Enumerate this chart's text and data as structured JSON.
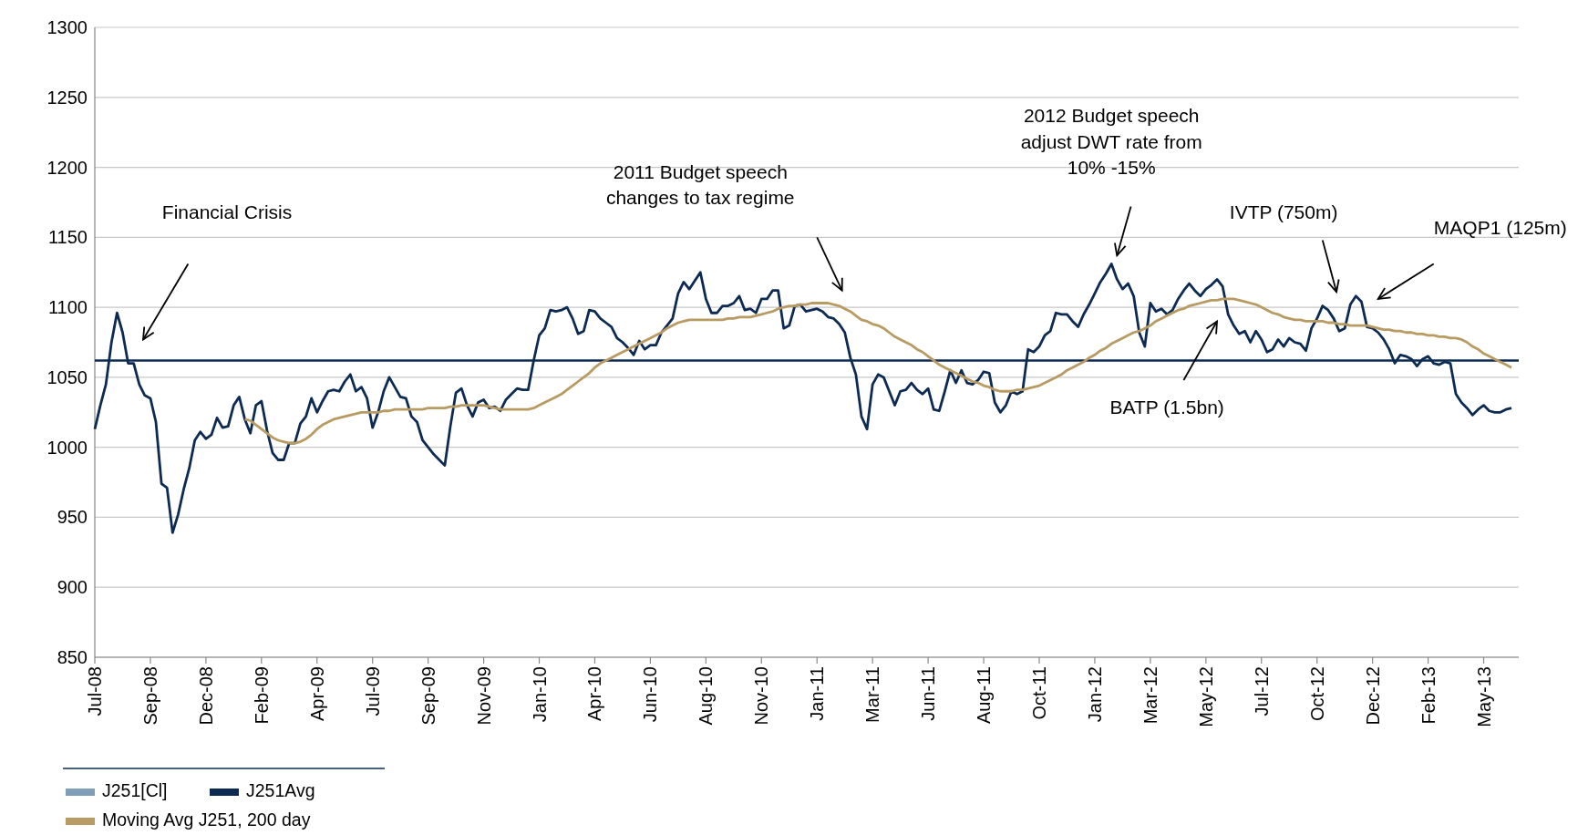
{
  "chart_data": {
    "type": "line",
    "categories": [
      "Jul-08",
      null,
      null,
      null,
      null,
      null,
      null,
      null,
      null,
      null,
      "Sep-08",
      null,
      null,
      null,
      null,
      null,
      null,
      null,
      null,
      null,
      "Dec-08",
      null,
      null,
      null,
      null,
      null,
      null,
      null,
      null,
      null,
      "Feb-09",
      null,
      null,
      null,
      null,
      null,
      null,
      null,
      null,
      null,
      "Apr-09",
      null,
      null,
      null,
      null,
      null,
      null,
      null,
      null,
      null,
      "Jul-09",
      null,
      null,
      null,
      null,
      null,
      null,
      null,
      null,
      null,
      "Sep-09",
      null,
      null,
      null,
      null,
      null,
      null,
      null,
      null,
      null,
      "Nov-09",
      null,
      null,
      null,
      null,
      null,
      null,
      null,
      null,
      null,
      "Jan-10",
      null,
      null,
      null,
      null,
      null,
      null,
      null,
      null,
      null,
      "Apr-10",
      null,
      null,
      null,
      null,
      null,
      null,
      null,
      null,
      null,
      "Jun-10",
      null,
      null,
      null,
      null,
      null,
      null,
      null,
      null,
      null,
      "Aug-10",
      null,
      null,
      null,
      null,
      null,
      null,
      null,
      null,
      null,
      "Nov-10",
      null,
      null,
      null,
      null,
      null,
      null,
      null,
      null,
      null,
      "Jan-11",
      null,
      null,
      null,
      null,
      null,
      null,
      null,
      null,
      null,
      "Mar-11",
      null,
      null,
      null,
      null,
      null,
      null,
      null,
      null,
      null,
      "Jun-11",
      null,
      null,
      null,
      null,
      null,
      null,
      null,
      null,
      null,
      "Aug-11",
      null,
      null,
      null,
      null,
      null,
      null,
      null,
      null,
      null,
      "Oct-11",
      null,
      null,
      null,
      null,
      null,
      null,
      null,
      null,
      null,
      "Jan-12",
      null,
      null,
      null,
      null,
      null,
      null,
      null,
      null,
      null,
      "Mar-12",
      null,
      null,
      null,
      null,
      null,
      null,
      null,
      null,
      null,
      "May-12",
      null,
      null,
      null,
      null,
      null,
      null,
      null,
      null,
      null,
      "Jul-12",
      null,
      null,
      null,
      null,
      null,
      null,
      null,
      null,
      null,
      "Oct-12",
      null,
      null,
      null,
      null,
      null,
      null,
      null,
      null,
      null,
      "Dec-12",
      null,
      null,
      null,
      null,
      null,
      null,
      null,
      null,
      null,
      "Feb-13",
      null,
      null,
      null,
      null,
      null,
      null,
      null,
      null,
      null,
      "May-13",
      null,
      null,
      null,
      null,
      null
    ],
    "series": [
      {
        "name": "J251[Cl]",
        "color": "#7f9fb8",
        "values": [
          null,
          null,
          null,
          null,
          null,
          null,
          null,
          null,
          null,
          null,
          null,
          null,
          null,
          null,
          null,
          null,
          null,
          null,
          null,
          null,
          null,
          null,
          null,
          null,
          null,
          null,
          null,
          null,
          null,
          null,
          null,
          null,
          null,
          null,
          null,
          null,
          null,
          null,
          null,
          null,
          null,
          null,
          null,
          null,
          null,
          null,
          null,
          null,
          null,
          null,
          null,
          null,
          null,
          null,
          null,
          null,
          null,
          null,
          null,
          null,
          null,
          null,
          null,
          null,
          null,
          null,
          null,
          null,
          null,
          null,
          null,
          null,
          null,
          null,
          null,
          null,
          null,
          null,
          null,
          null,
          null,
          null,
          null,
          null,
          null,
          null,
          null,
          null,
          null,
          null,
          null,
          null,
          null,
          null,
          null,
          null,
          null,
          null,
          null,
          null,
          null,
          null,
          null,
          null,
          null,
          null,
          null,
          null,
          null,
          null,
          null,
          null,
          null,
          null,
          null,
          null,
          null,
          null,
          null,
          null,
          null,
          null,
          null,
          null,
          null,
          null,
          null,
          null,
          null,
          null,
          null,
          null,
          null,
          null,
          null,
          null,
          null,
          null,
          null,
          null,
          null,
          null,
          null,
          null,
          null,
          null,
          null,
          null,
          null,
          null,
          null,
          null,
          null,
          null,
          null,
          null,
          null,
          null,
          null,
          null,
          null,
          null,
          null,
          null,
          null,
          null,
          null,
          null,
          null,
          null,
          null,
          null,
          null,
          null,
          null,
          null,
          null,
          null,
          null,
          null,
          null,
          null,
          null,
          null,
          null,
          null,
          null,
          null,
          null,
          null,
          null,
          null,
          null,
          null,
          null,
          null,
          null,
          null,
          null,
          null,
          null,
          null,
          null,
          null,
          null,
          null,
          null,
          null,
          null,
          null,
          null,
          null,
          null,
          null,
          null,
          null,
          null,
          null,
          null,
          null,
          null,
          null,
          null,
          null,
          null,
          null,
          null,
          null,
          null,
          null,
          null,
          null,
          null,
          null,
          null,
          null,
          null,
          null,
          null,
          null,
          null,
          null,
          null,
          null,
          null,
          null,
          null,
          null,
          null,
          null,
          null,
          null,
          null,
          null,
          null,
          null
        ]
      },
      {
        "name": "J251Avg",
        "color": "#0d2b52",
        "values": [
          1013,
          1030,
          1045,
          1075,
          1096,
          1082,
          1060,
          1060,
          1045,
          1037,
          1035,
          1018,
          974,
          971,
          939,
          952,
          970,
          985,
          1005,
          1011,
          1006,
          1009,
          1021,
          1014,
          1015,
          1030,
          1036,
          1020,
          1010,
          1030,
          1033,
          1012,
          996,
          991,
          991,
          1003,
          1003,
          1017,
          1022,
          1035,
          1025,
          1033,
          1040,
          1041,
          1040,
          1047,
          1052,
          1040,
          1043,
          1035,
          1014,
          1025,
          1040,
          1050,
          1043,
          1036,
          1035,
          1022,
          1018,
          1005,
          1000,
          995,
          991,
          987,
          1015,
          1039,
          1042,
          1030,
          1022,
          1032,
          1034,
          1028,
          1029,
          1026,
          1034,
          1038,
          1042,
          1041,
          1041,
          1062,
          1080,
          1085,
          1098,
          1097,
          1098,
          1100,
          1092,
          1081,
          1083,
          1098,
          1097,
          1092,
          1089,
          1086,
          1078,
          1075,
          1071,
          1066,
          1076,
          1070,
          1073,
          1073,
          1082,
          1087,
          1092,
          1110,
          1118,
          1113,
          1119,
          1125,
          1106,
          1096,
          1096,
          1101,
          1101,
          1103,
          1108,
          1098,
          1099,
          1096,
          1106,
          1106,
          1112,
          1112,
          1085,
          1087,
          1101,
          1102,
          1097,
          1098,
          1099,
          1097,
          1093,
          1092,
          1088,
          1082,
          1064,
          1052,
          1022,
          1013,
          1045,
          1052,
          1050,
          1040,
          1030,
          1040,
          1041,
          1046,
          1041,
          1038,
          1042,
          1027,
          1026,
          1040,
          1055,
          1046,
          1055,
          1046,
          1045,
          1048,
          1054,
          1053,
          1032,
          1025,
          1030,
          1040,
          1038,
          1040,
          1070,
          1068,
          1072,
          1080,
          1083,
          1096,
          1095,
          1095,
          1090,
          1086,
          1095,
          1102,
          1110,
          1118,
          1124,
          1131,
          1120,
          1113,
          1117,
          1108,
          1082,
          1072,
          1103,
          1097,
          1099,
          1095,
          1098,
          1106,
          1112,
          1117,
          1112,
          1108,
          1113,
          1116,
          1120,
          1115,
          1095,
          1087,
          1081,
          1083,
          1075,
          1083,
          1077,
          1068,
          1070,
          1077,
          1072,
          1078,
          1075,
          1074,
          1069,
          1085,
          1092,
          1101,
          1098,
          1092,
          1083,
          1085,
          1102,
          1108,
          1104,
          1086,
          1085,
          1082,
          1077,
          1070,
          1060,
          1066,
          1065,
          1063,
          1058,
          1063,
          1065,
          1060,
          1059,
          1061,
          1060,
          1038,
          1032,
          1028,
          1023,
          1027,
          1030,
          1026,
          1025,
          1025,
          1027,
          1028
        ]
      },
      {
        "name": "Moving Avg J251, 200 day",
        "color": "#b89b62",
        "values": [
          null,
          null,
          null,
          null,
          null,
          null,
          null,
          null,
          null,
          null,
          null,
          null,
          null,
          null,
          null,
          null,
          null,
          null,
          null,
          null,
          null,
          null,
          null,
          null,
          null,
          null,
          null,
          1020,
          1019,
          1016,
          1013,
          1010,
          1007,
          1005,
          1004,
          1003,
          1003,
          1004,
          1006,
          1009,
          1013,
          1016,
          1018,
          1020,
          1021,
          1022,
          1023,
          1024,
          1025,
          1025,
          1025,
          1025,
          1026,
          1026,
          1027,
          1027,
          1027,
          1027,
          1027,
          1027,
          1028,
          1028,
          1028,
          1028,
          1029,
          1029,
          1030,
          1030,
          1030,
          1030,
          1030,
          1029,
          1028,
          1027,
          1027,
          1027,
          1027,
          1027,
          1027,
          1028,
          1030,
          1032,
          1034,
          1036,
          1038,
          1041,
          1044,
          1047,
          1050,
          1053,
          1057,
          1060,
          1062,
          1064,
          1066,
          1068,
          1070,
          1072,
          1074,
          1076,
          1078,
          1080,
          1082,
          1085,
          1087,
          1089,
          1090,
          1091,
          1091,
          1091,
          1091,
          1091,
          1091,
          1091,
          1092,
          1092,
          1093,
          1093,
          1093,
          1094,
          1095,
          1096,
          1097,
          1099,
          1100,
          1101,
          1101,
          1102,
          1102,
          1103,
          1103,
          1103,
          1103,
          1102,
          1101,
          1099,
          1097,
          1094,
          1091,
          1090,
          1088,
          1087,
          1085,
          1082,
          1079,
          1077,
          1075,
          1073,
          1070,
          1068,
          1065,
          1062,
          1059,
          1057,
          1055,
          1053,
          1051,
          1049,
          1047,
          1046,
          1044,
          1043,
          1041,
          1040,
          1040,
          1040,
          1041,
          1041,
          1042,
          1043,
          1044,
          1046,
          1048,
          1050,
          1052,
          1055,
          1057,
          1059,
          1061,
          1064,
          1066,
          1069,
          1071,
          1074,
          1076,
          1078,
          1080,
          1082,
          1083,
          1085,
          1087,
          1090,
          1092,
          1094,
          1096,
          1098,
          1099,
          1101,
          1102,
          1103,
          1104,
          1105,
          1105,
          1106,
          1106,
          1106,
          1105,
          1104,
          1103,
          1102,
          1100,
          1098,
          1096,
          1095,
          1093,
          1092,
          1091,
          1091,
          1090,
          1090,
          1090,
          1090,
          1089,
          1089,
          1088,
          1088,
          1087,
          1087,
          1087,
          1087,
          1086,
          1085,
          1084,
          1084,
          1083,
          1083,
          1082,
          1082,
          1081,
          1081,
          1080,
          1080,
          1079,
          1079,
          1078,
          1078,
          1077,
          1075,
          1072,
          1070,
          1067,
          1065,
          1063,
          1061,
          1059,
          1057
        ]
      }
    ],
    "ylim": [
      850,
      1300
    ],
    "yticks": [
      850,
      900,
      950,
      1000,
      1050,
      1100,
      1150,
      1200,
      1250,
      1300
    ],
    "grid": "y",
    "legend": "bottom",
    "line_style": "solid",
    "marker": "none",
    "ref_lines": [
      {
        "axis": "y",
        "value": 1062,
        "color": "#0d2b52"
      }
    ],
    "annotations": [
      "Financial Crisis",
      "2011 Budget speech\nchanges to tax regime",
      "2012 Budget speech\nadjust DWT rate from\n10% -15%",
      "IVTP (750m)",
      "MAQP1 (125m)",
      "BATP (1.5bn)"
    ]
  }
}
